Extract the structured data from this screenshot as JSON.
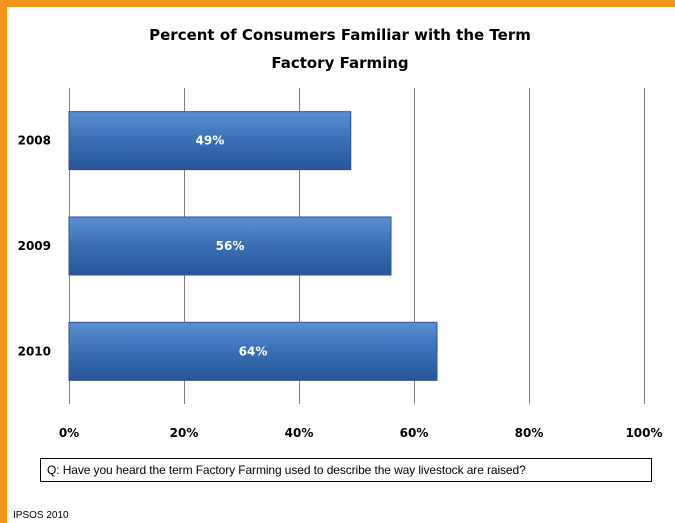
{
  "chart_data": {
    "type": "bar",
    "orientation": "horizontal",
    "title": "Percent of Consumers Familiar with the Term Factory Farming",
    "title_lines": [
      "Percent of Consumers Familiar with the Term",
      "Factory Farming"
    ],
    "categories": [
      "2008",
      "2009",
      "2010"
    ],
    "values": [
      49,
      56,
      64
    ],
    "data_labels": [
      "49%",
      "56%",
      "64%"
    ],
    "xlim": [
      0,
      100
    ],
    "x_ticks": [
      0,
      20,
      40,
      60,
      80,
      100
    ],
    "x_tick_labels": [
      "0%",
      "20%",
      "40%",
      "60%",
      "80%",
      "100%"
    ],
    "xlabel": "",
    "ylabel": "",
    "grid": "vertical",
    "legend": "none",
    "colors": {
      "bar": "#3a6fb5",
      "bar_light": "#5b8fd4",
      "bar_dark": "#2a5597",
      "frame": "#f7941d",
      "gridline": "#7f7f7f"
    }
  },
  "question": "Q:  Have you heard the term Factory Farming used to describe the way livestock are raised?",
  "source": "IPSOS 2010"
}
